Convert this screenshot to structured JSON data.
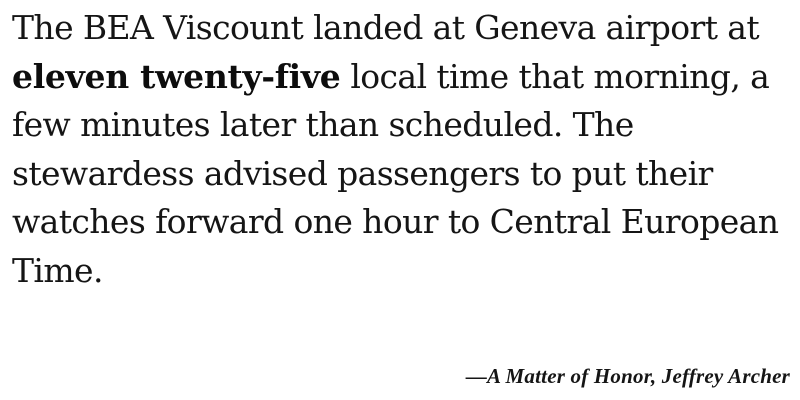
{
  "quote": {
    "before_emphasis": "The BEA Viscount landed at Geneva airport at ",
    "emphasis": "eleven twenty-five",
    "after_emphasis": " local time that morning, a few minutes later than scheduled. The stewardess advised passengers to put their watches forward one hour to Central European Time."
  },
  "attribution": {
    "text": "—A Matter of Honor, Jeffrey Archer"
  }
}
